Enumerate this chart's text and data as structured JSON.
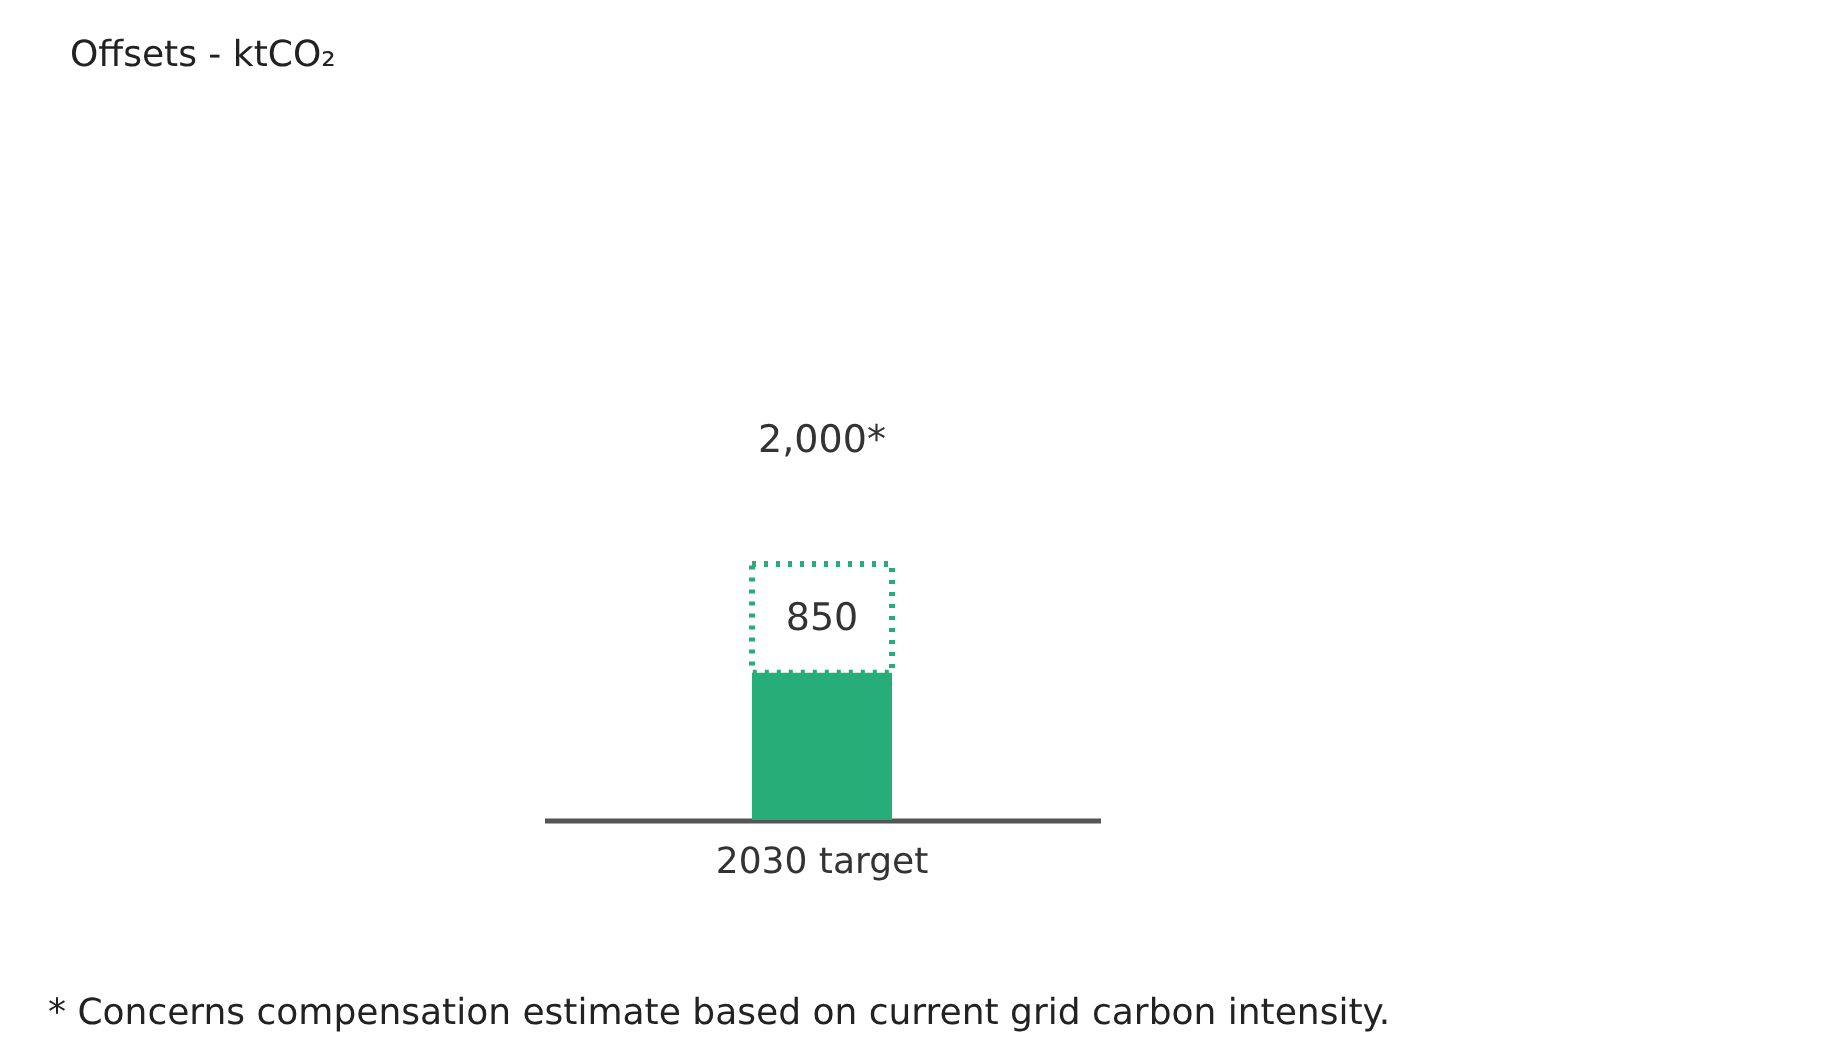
{
  "chart_data": {
    "type": "bar",
    "title": "Offsets - ktCO₂",
    "categories": [
      "2030 target"
    ],
    "stacked": true,
    "series": [
      {
        "color": "#27ae78",
        "values": [
          1150
        ]
      },
      {
        "color": "#27ae78",
        "values": [
          850
        ],
        "line_style": "dotted",
        "value_labels": [
          "850"
        ]
      }
    ],
    "totals": [
      "2,000*"
    ],
    "annotations": [
      "* Concerns compensation estimate based on current grid carbon intensity."
    ]
  }
}
